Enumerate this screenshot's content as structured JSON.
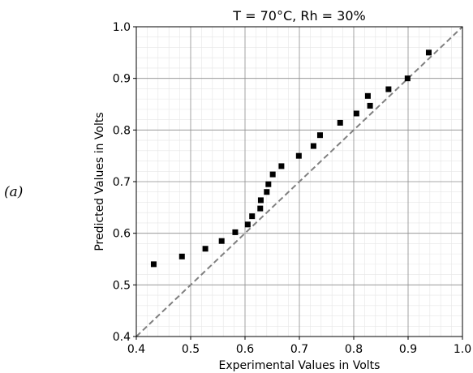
{
  "panel_label": "(a)",
  "chart_data": {
    "type": "scatter",
    "title": "T = 70°C, Rh = 30%",
    "xlabel": "Experimental Values in Volts",
    "ylabel": "Predicted Values in Volts",
    "xlim": [
      0.4,
      1.0
    ],
    "ylim": [
      0.4,
      1.0
    ],
    "x_ticks": [
      "0.4",
      "0.5",
      "0.6",
      "0.7",
      "0.8",
      "0.9",
      "1.0"
    ],
    "y_ticks": [
      "0.4",
      "0.5",
      "0.6",
      "0.7",
      "0.8",
      "0.9",
      "1.0"
    ],
    "grid": true,
    "reference_line": {
      "from": [
        0.4,
        0.4
      ],
      "to": [
        1.0,
        1.0
      ],
      "style": "dashed",
      "color": "#808080"
    },
    "marker_color": "#000000",
    "points": [
      {
        "x": 0.432,
        "y": 0.54
      },
      {
        "x": 0.484,
        "y": 0.555
      },
      {
        "x": 0.527,
        "y": 0.57
      },
      {
        "x": 0.557,
        "y": 0.585
      },
      {
        "x": 0.582,
        "y": 0.602
      },
      {
        "x": 0.605,
        "y": 0.617
      },
      {
        "x": 0.613,
        "y": 0.633
      },
      {
        "x": 0.628,
        "y": 0.648
      },
      {
        "x": 0.629,
        "y": 0.664
      },
      {
        "x": 0.64,
        "y": 0.68
      },
      {
        "x": 0.643,
        "y": 0.695
      },
      {
        "x": 0.651,
        "y": 0.714
      },
      {
        "x": 0.667,
        "y": 0.73
      },
      {
        "x": 0.699,
        "y": 0.75
      },
      {
        "x": 0.726,
        "y": 0.769
      },
      {
        "x": 0.738,
        "y": 0.79
      },
      {
        "x": 0.775,
        "y": 0.814
      },
      {
        "x": 0.805,
        "y": 0.832
      },
      {
        "x": 0.826,
        "y": 0.866
      },
      {
        "x": 0.83,
        "y": 0.847
      },
      {
        "x": 0.864,
        "y": 0.879
      },
      {
        "x": 0.899,
        "y": 0.9
      },
      {
        "x": 0.938,
        "y": 0.95
      }
    ]
  }
}
